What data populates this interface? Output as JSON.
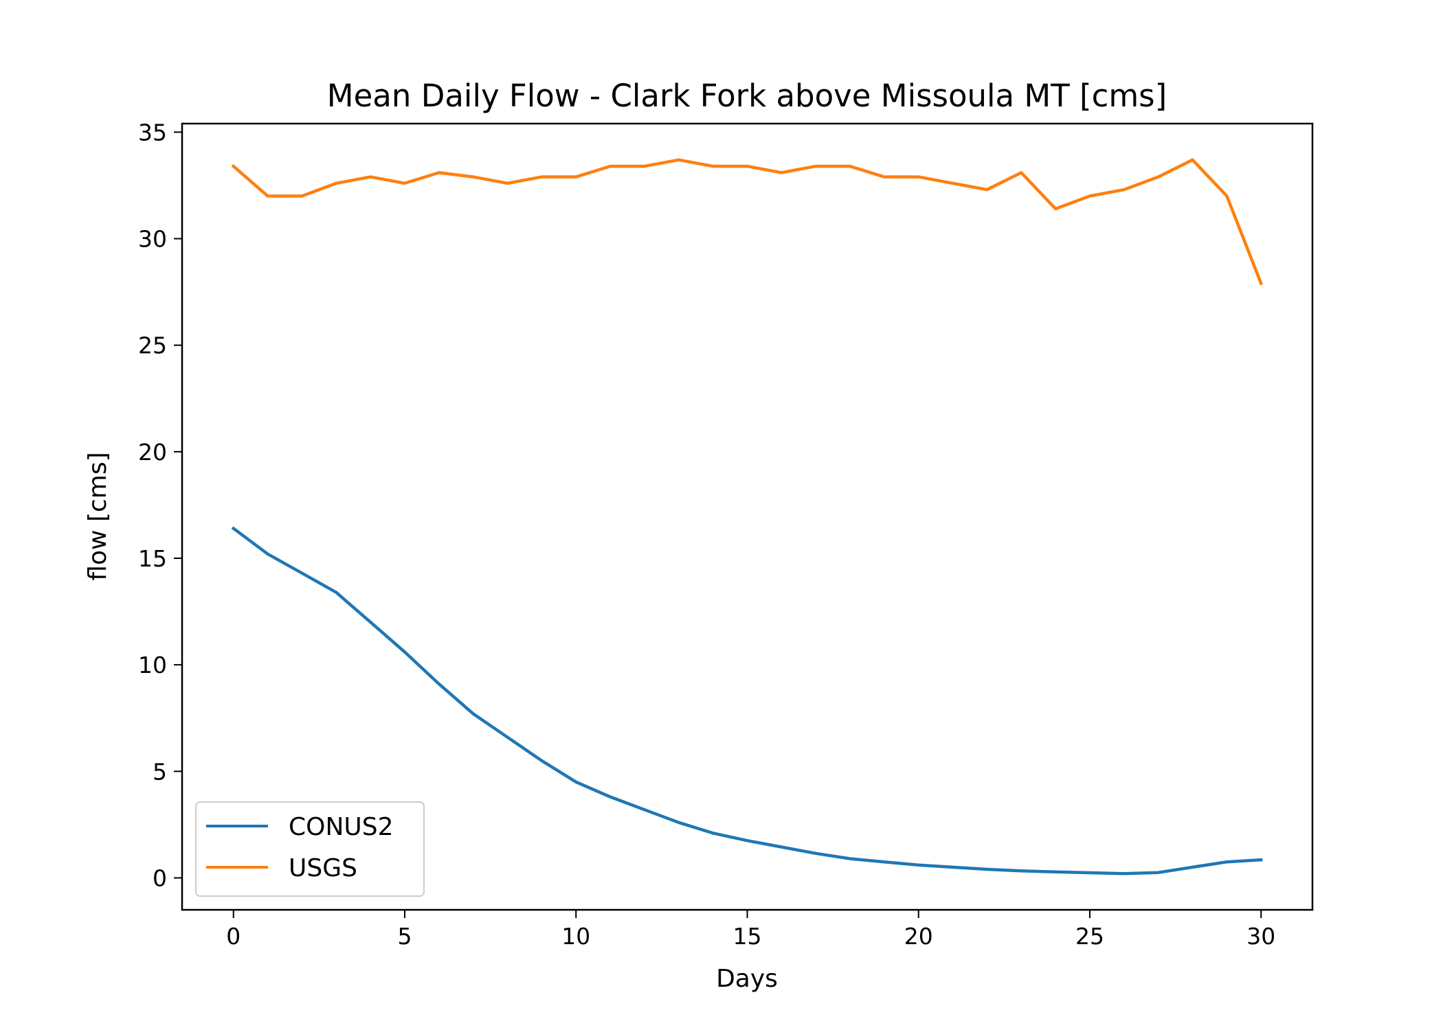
{
  "chart_data": {
    "type": "line",
    "title": "Mean Daily Flow - Clark Fork above Missoula MT [cms]",
    "xlabel": "Days",
    "ylabel": "flow [cms]",
    "xlim": [
      -1.5,
      31.5
    ],
    "ylim": [
      -1.5,
      35.4
    ],
    "xticks": [
      0,
      5,
      10,
      15,
      20,
      25,
      30
    ],
    "yticks": [
      0,
      5,
      10,
      15,
      20,
      25,
      30,
      35
    ],
    "grid": false,
    "legend_position": "lower-left",
    "x": [
      0,
      1,
      2,
      3,
      4,
      5,
      6,
      7,
      8,
      9,
      10,
      11,
      12,
      13,
      14,
      15,
      16,
      17,
      18,
      19,
      20,
      21,
      22,
      23,
      24,
      25,
      26,
      27,
      28,
      29,
      30
    ],
    "series": [
      {
        "name": "CONUS2",
        "color": "#1f77b4",
        "values": [
          16.4,
          15.2,
          14.3,
          13.4,
          12.0,
          10.6,
          9.1,
          7.7,
          6.6,
          5.5,
          4.5,
          3.8,
          3.2,
          2.6,
          2.1,
          1.75,
          1.45,
          1.15,
          0.9,
          0.75,
          0.6,
          0.5,
          0.4,
          0.33,
          0.28,
          0.24,
          0.2,
          0.25,
          0.5,
          0.75,
          0.85
        ]
      },
      {
        "name": "USGS",
        "color": "#ff7f0e",
        "values": [
          33.4,
          32.0,
          32.0,
          32.6,
          32.9,
          32.6,
          33.1,
          32.9,
          32.6,
          32.9,
          32.9,
          33.4,
          33.4,
          33.7,
          33.4,
          33.4,
          33.1,
          33.4,
          33.4,
          32.9,
          32.9,
          32.6,
          32.3,
          33.1,
          31.4,
          32.0,
          32.3,
          32.9,
          33.7,
          32.0,
          27.9
        ]
      }
    ]
  }
}
